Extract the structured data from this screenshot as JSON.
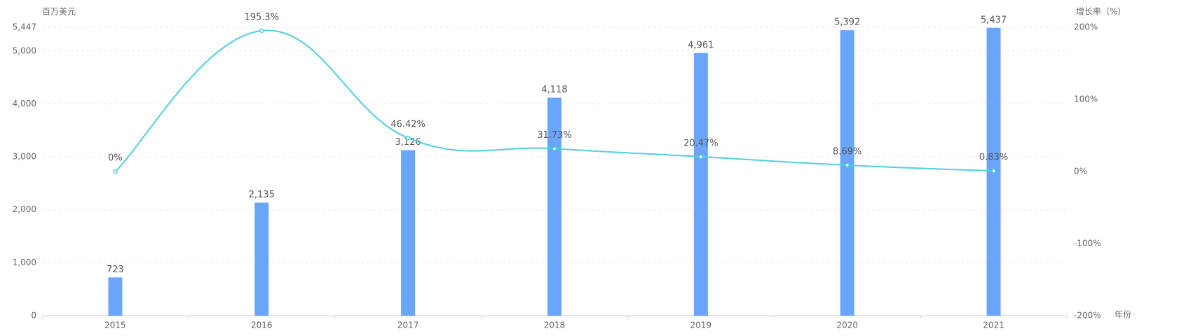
{
  "chart_data": {
    "type": "bar",
    "y_label": "百万美元",
    "y2_label": "增长率（%）",
    "x_label": "年份",
    "categories": [
      "2015",
      "2016",
      "2017",
      "2018",
      "2019",
      "2020",
      "2021"
    ],
    "series": [
      {
        "type": "bar",
        "color": "#6aa5fc",
        "values": [
          723,
          2135,
          3126,
          4118,
          4961,
          5392,
          5437
        ],
        "value_labels": [
          "723",
          "2,135",
          "3,126",
          "4,118",
          "4,961",
          "5,392",
          "5,437"
        ]
      },
      {
        "type": "line",
        "axis": "y2",
        "color": "#4fd0db",
        "values": [
          0,
          195.3,
          46.42,
          31.73,
          20.47,
          8.69,
          0.83
        ],
        "value_labels": [
          "0%",
          "195.3%",
          "46.42%",
          "31.73%",
          "20.47%",
          "8.69%",
          "0.83%"
        ]
      }
    ],
    "ylim": [
      0,
      5447
    ],
    "yticks": [
      0,
      {
        "value": 1000,
        "label": "1,000"
      },
      {
        "value": 2000,
        "label": "2,000"
      },
      {
        "value": 3000,
        "label": "3,000"
      },
      {
        "value": 4000,
        "label": "4,000"
      },
      {
        "value": 5000,
        "label": "5,000"
      },
      {
        "value": 5447,
        "label": "5,447"
      }
    ],
    "y2lim": [
      -200,
      200
    ],
    "y2ticks": [
      {
        "value": -200,
        "label": "-200%"
      },
      {
        "value": -100,
        "label": "-100%"
      },
      {
        "value": 0,
        "label": "0%"
      },
      {
        "value": 100,
        "label": "100%"
      },
      {
        "value": 200,
        "label": "200%"
      }
    ],
    "grid": true
  }
}
